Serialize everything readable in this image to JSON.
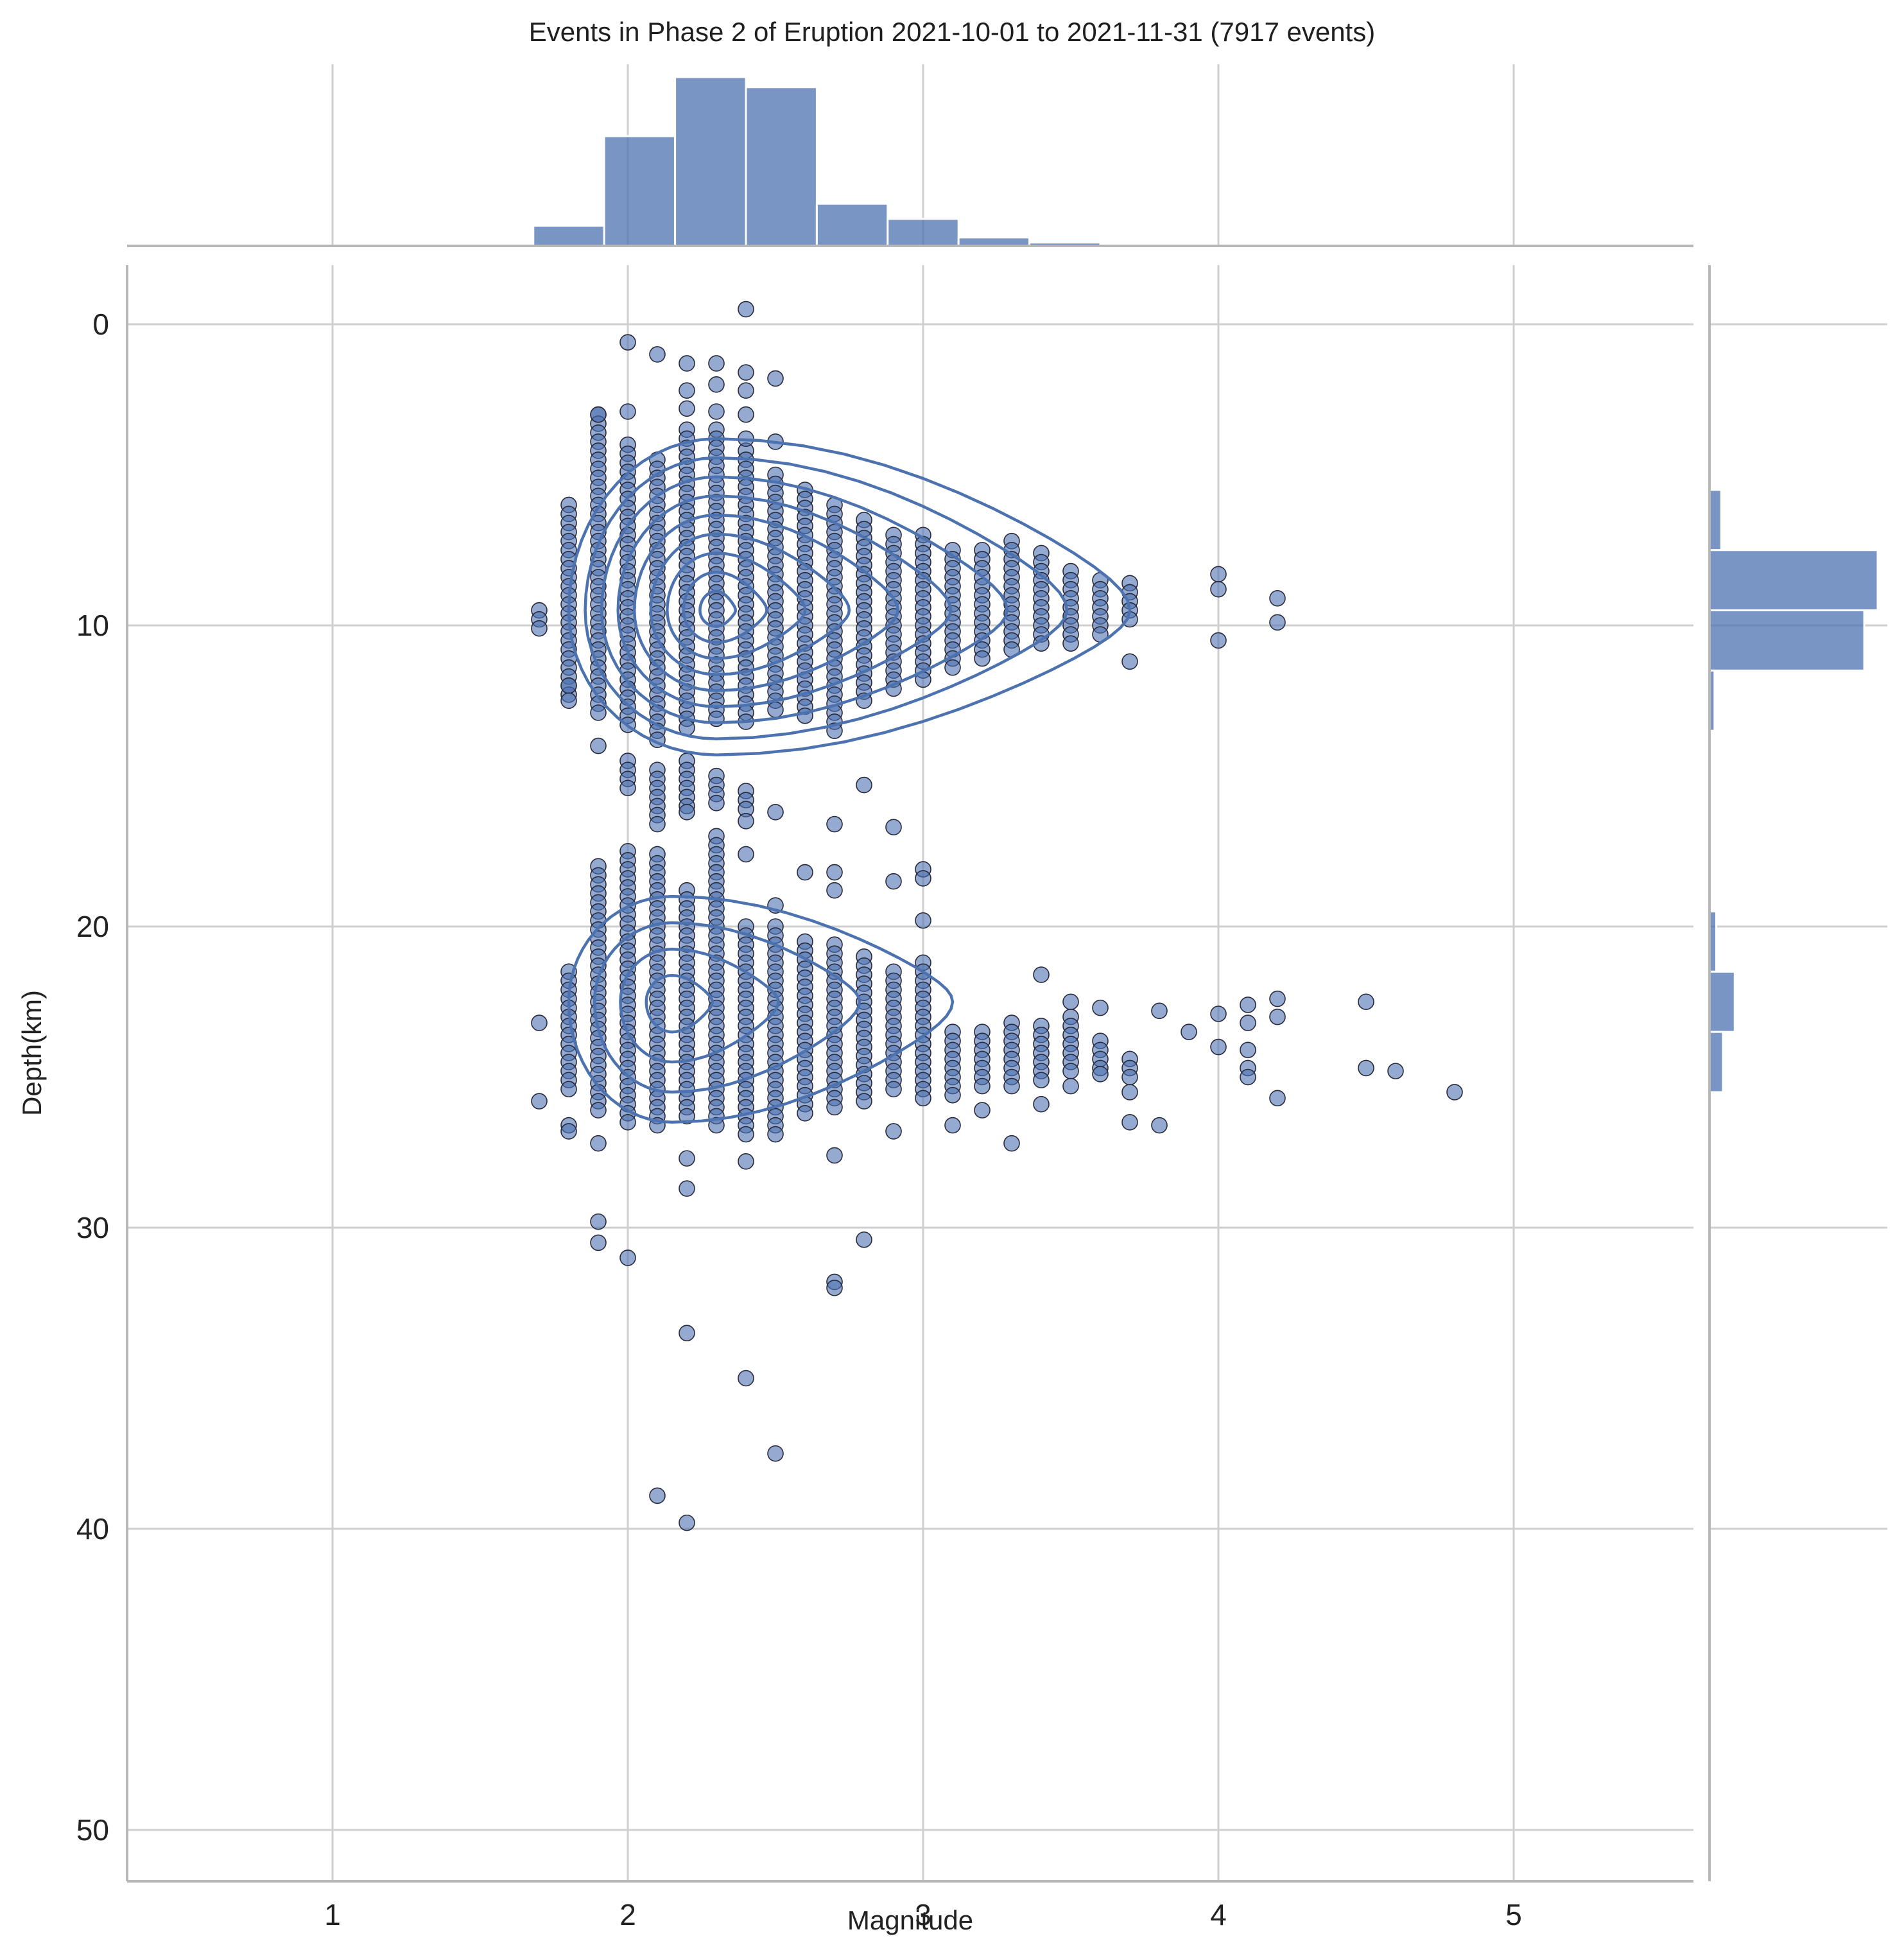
{
  "chart_data": {
    "type": "scatter",
    "title": "Events in Phase 2 of Eruption 2021-10-01 to 2021-11-31 (7917 events)",
    "xlabel": "Magnitude",
    "ylabel": "Depth(km)",
    "xlim": [
      0.3,
      5.6
    ],
    "ylim": [
      50,
      -2
    ],
    "y_inverted": true,
    "grid": true,
    "x_ticks": [
      "1",
      "2",
      "3",
      "4",
      "5"
    ],
    "y_ticks": [
      "0",
      "10",
      "20",
      "30",
      "40",
      "50"
    ],
    "colors": {
      "series": "#4c72b0",
      "grid": "#cfcfcf"
    },
    "marginal_x_hist": {
      "bin_width": 0.24,
      "bins": [
        {
          "x0": 1.68,
          "count": 0.12
        },
        {
          "x0": 1.92,
          "count": 0.65
        },
        {
          "x0": 2.16,
          "count": 1.0
        },
        {
          "x0": 2.4,
          "count": 0.94
        },
        {
          "x0": 2.64,
          "count": 0.25
        },
        {
          "x0": 2.88,
          "count": 0.16
        },
        {
          "x0": 3.12,
          "count": 0.05
        },
        {
          "x0": 3.36,
          "count": 0.02
        },
        {
          "x0": 3.6,
          "count": 0.006
        }
      ]
    },
    "marginal_y_hist": {
      "bin_height": 2.0,
      "bins": [
        {
          "y0": 5.5,
          "count": 0.07
        },
        {
          "y0": 7.5,
          "count": 1.0
        },
        {
          "y0": 9.5,
          "count": 0.92
        },
        {
          "y0": 11.5,
          "count": 0.03
        },
        {
          "y0": 19.5,
          "count": 0.04
        },
        {
          "y0": 21.5,
          "count": 0.15
        },
        {
          "y0": 23.5,
          "count": 0.08
        }
      ]
    },
    "kde_clusters": [
      {
        "cx": 2.3,
        "cy": 9.5,
        "extent_x": [
          1.8,
          3.7
        ],
        "extent_y": [
          3.8,
          14.3
        ],
        "levels": 9
      },
      {
        "cx": 2.15,
        "cy": 22.5,
        "extent_x": [
          1.8,
          3.1
        ],
        "extent_y": [
          19.0,
          26.5
        ],
        "levels": 4
      }
    ],
    "scatter": {
      "outliers": [
        [
          2.4,
          -0.5
        ],
        [
          2.0,
          0.6
        ],
        [
          2.1,
          1.0
        ],
        [
          2.2,
          1.3
        ],
        [
          2.3,
          1.3
        ],
        [
          2.4,
          1.6
        ],
        [
          2.5,
          1.8
        ],
        [
          2.2,
          2.2
        ],
        [
          2.3,
          2.0
        ],
        [
          2.4,
          2.2
        ],
        [
          2.2,
          2.8
        ],
        [
          2.3,
          2.9
        ],
        [
          2.4,
          3.0
        ],
        [
          1.9,
          3.0
        ],
        [
          2.0,
          2.9
        ],
        [
          2.4,
          3.8
        ],
        [
          2.5,
          3.9
        ],
        [
          4.0,
          8.3
        ],
        [
          4.0,
          8.8
        ],
        [
          4.2,
          9.1
        ],
        [
          4.2,
          9.9
        ],
        [
          4.0,
          10.5
        ],
        [
          3.7,
          11.2
        ],
        [
          1.8,
          12.0
        ],
        [
          1.8,
          12.5
        ],
        [
          1.9,
          14.0
        ],
        [
          2.8,
          15.3
        ],
        [
          2.7,
          16.6
        ],
        [
          2.9,
          16.7
        ],
        [
          2.2,
          16.2
        ],
        [
          2.4,
          16.5
        ],
        [
          2.5,
          16.2
        ],
        [
          2.4,
          17.6
        ],
        [
          2.6,
          18.2
        ],
        [
          2.7,
          18.2
        ],
        [
          2.7,
          18.8
        ],
        [
          2.5,
          19.3
        ],
        [
          2.9,
          18.5
        ],
        [
          3.0,
          18.1
        ],
        [
          3.0,
          18.4
        ],
        [
          3.0,
          19.8
        ],
        [
          1.7,
          23.2
        ],
        [
          1.7,
          25.8
        ],
        [
          1.8,
          26.6
        ],
        [
          1.8,
          26.8
        ],
        [
          1.9,
          27.2
        ],
        [
          2.2,
          27.7
        ],
        [
          2.4,
          27.8
        ],
        [
          2.7,
          27.6
        ],
        [
          2.9,
          26.8
        ],
        [
          3.3,
          27.2
        ],
        [
          3.7,
          26.5
        ],
        [
          3.8,
          26.6
        ],
        [
          2.2,
          28.7
        ],
        [
          1.9,
          29.8
        ],
        [
          1.9,
          30.5
        ],
        [
          2.0,
          31.0
        ],
        [
          2.8,
          30.4
        ],
        [
          2.7,
          31.8
        ],
        [
          2.7,
          32.0
        ],
        [
          2.2,
          33.5
        ],
        [
          2.4,
          35.0
        ],
        [
          2.5,
          37.5
        ],
        [
          2.1,
          38.9
        ],
        [
          2.2,
          39.8
        ],
        [
          3.4,
          21.6
        ],
        [
          3.5,
          22.5
        ],
        [
          3.6,
          22.7
        ],
        [
          3.8,
          22.8
        ],
        [
          3.9,
          23.5
        ],
        [
          4.0,
          22.9
        ],
        [
          4.1,
          22.6
        ],
        [
          4.1,
          23.2
        ],
        [
          4.2,
          22.4
        ],
        [
          4.2,
          23.0
        ],
        [
          4.5,
          22.5
        ],
        [
          4.0,
          24.0
        ],
        [
          4.1,
          24.1
        ],
        [
          4.1,
          24.7
        ],
        [
          4.1,
          25.0
        ],
        [
          4.2,
          25.7
        ],
        [
          4.5,
          24.7
        ],
        [
          4.6,
          24.8
        ],
        [
          4.8,
          25.5
        ],
        [
          3.5,
          25.3
        ],
        [
          3.7,
          25.5
        ],
        [
          3.6,
          24.9
        ],
        [
          3.4,
          25.9
        ],
        [
          3.2,
          26.1
        ],
        [
          3.1,
          26.6
        ]
      ],
      "columns": [
        {
          "x": 1.7,
          "spans": [
            [
              9.5,
              10.3
            ]
          ]
        },
        {
          "x": 1.8,
          "spans": [
            [
              6.0,
              12.5
            ],
            [
              21.5,
              25.5
            ]
          ]
        },
        {
          "x": 1.9,
          "spans": [
            [
              3.0,
              13.0
            ],
            [
              18.0,
              26.2
            ]
          ]
        },
        {
          "x": 2.0,
          "spans": [
            [
              4.0,
              13.5
            ],
            [
              14.5,
              15.5
            ],
            [
              17.5,
              26.5
            ]
          ]
        },
        {
          "x": 2.1,
          "spans": [
            [
              4.5,
              13.8
            ],
            [
              14.8,
              16.6
            ],
            [
              17.6,
              26.6
            ]
          ]
        },
        {
          "x": 2.2,
          "spans": [
            [
              3.5,
              13.5
            ],
            [
              14.5,
              16.0
            ],
            [
              18.8,
              26.5
            ]
          ]
        },
        {
          "x": 2.3,
          "spans": [
            [
              3.5,
              13.2
            ],
            [
              15.0,
              16.0
            ],
            [
              17.0,
              26.8
            ]
          ]
        },
        {
          "x": 2.4,
          "spans": [
            [
              4.2,
              13.2
            ],
            [
              15.5,
              16.2
            ],
            [
              20.0,
              27.0
            ]
          ]
        },
        {
          "x": 2.5,
          "spans": [
            [
              5.0,
              13.0
            ],
            [
              20.0,
              27.0
            ]
          ]
        },
        {
          "x": 2.6,
          "spans": [
            [
              5.5,
              13.2
            ],
            [
              20.5,
              26.4
            ]
          ]
        },
        {
          "x": 2.7,
          "spans": [
            [
              6.0,
              13.5
            ],
            [
              20.6,
              26.2
            ]
          ]
        },
        {
          "x": 2.8,
          "spans": [
            [
              6.5,
              12.6
            ],
            [
              21.0,
              26.0
            ]
          ]
        },
        {
          "x": 2.9,
          "spans": [
            [
              7.0,
              12.2
            ],
            [
              21.5,
              25.5
            ]
          ]
        },
        {
          "x": 3.0,
          "spans": [
            [
              7.0,
              11.8
            ],
            [
              21.2,
              25.8
            ]
          ]
        },
        {
          "x": 3.1,
          "spans": [
            [
              7.5,
              11.5
            ],
            [
              23.5,
              25.8
            ]
          ]
        },
        {
          "x": 3.2,
          "spans": [
            [
              7.5,
              11.2
            ],
            [
              23.5,
              25.3
            ]
          ]
        },
        {
          "x": 3.3,
          "spans": [
            [
              7.2,
              11.0
            ],
            [
              23.2,
              25.5
            ]
          ]
        },
        {
          "x": 3.4,
          "spans": [
            [
              7.6,
              10.8
            ],
            [
              23.3,
              25.2
            ]
          ]
        },
        {
          "x": 3.5,
          "spans": [
            [
              8.2,
              10.6
            ],
            [
              23.0,
              25.0
            ]
          ]
        },
        {
          "x": 3.6,
          "spans": [
            [
              8.5,
              10.5
            ],
            [
              23.8,
              24.9
            ]
          ]
        },
        {
          "x": 3.7,
          "spans": [
            [
              8.6,
              9.8
            ],
            [
              24.4,
              25.0
            ]
          ]
        }
      ]
    }
  }
}
